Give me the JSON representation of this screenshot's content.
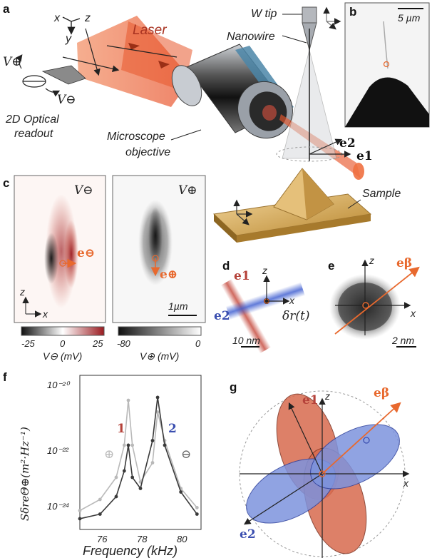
{
  "labels": {
    "panel_a": "a",
    "panel_b": "b",
    "panel_c": "c",
    "panel_d": "d",
    "panel_e": "e",
    "panel_f": "f",
    "panel_g": "g"
  },
  "a": {
    "laser": "Laser",
    "w_tip": "W tip",
    "nanowire": "Nanowire",
    "readout_1": "2D Optical",
    "readout_2": "readout",
    "objective_1": "Microscope",
    "objective_2": "objective",
    "sample": "Sample",
    "axis_x": "x",
    "axis_y": "y",
    "axis_z": "z",
    "v_plus": "V⊕",
    "v_minus": "V⊖",
    "e1": "e1",
    "e2": "e2"
  },
  "b": {
    "scalebar": "5 µm"
  },
  "c": {
    "left_title": "V⊖",
    "right_title": "V⊕",
    "e_minus": "e⊖",
    "e_plus": "e⊕",
    "axis_z": "z",
    "axis_x": "x",
    "scalebar": "1µm",
    "cbar_left_ticks": [
      "-25",
      "0",
      "25"
    ],
    "cbar_right_ticks": [
      "-80",
      "0"
    ],
    "cbar_left_label": "V⊖ (mV)",
    "cbar_right_label": "V⊕ (mV)"
  },
  "d": {
    "e1": "e1",
    "e2": "e2",
    "axis_z": "z",
    "axis_x": "x",
    "dr": "δr(t)",
    "scalebar": "10 nm"
  },
  "e": {
    "e_beta": "eβ",
    "axis_z": "z",
    "axis_x": "x",
    "scalebar": "2 nm"
  },
  "f": {
    "ylabel": "SδreΘ⊕(m²·Hz⁻¹)",
    "xlabel": "Frequency (kHz)",
    "yticks": [
      "10⁻²⁰",
      "10⁻²²",
      "10⁻²⁴"
    ],
    "xticks": [
      "76",
      "78",
      "80"
    ],
    "peak_1": "1",
    "peak_2": "2",
    "sym_plus": "⊕",
    "sym_minus": "⊖"
  },
  "g": {
    "e1": "e1",
    "e2": "e2",
    "e_beta": "eβ",
    "axis_z": "z",
    "axis_x": "x"
  },
  "chart_data": {
    "type": "scatter",
    "xlabel": "Frequency (kHz)",
    "ylabel": "SδreΘ⊕(m²·Hz⁻¹)",
    "xlim": [
      75,
      81
    ],
    "ylim": [
      1e-24,
      1e-20
    ],
    "yscale": "log",
    "series": [
      {
        "name": "⊕",
        "x": [
          75.0,
          76.0,
          76.8,
          77.2,
          77.4,
          77.6,
          78.0,
          78.6,
          78.85,
          79.2,
          80.0,
          80.8
        ],
        "values": [
          2.5e-24,
          5e-24,
          2e-23,
          1.5e-22,
          2.5e-21,
          1.5e-22,
          1.5e-23,
          5e-23,
          1.2e-21,
          2e-22,
          1e-23,
          3e-24
        ]
      },
      {
        "name": "⊖",
        "x": [
          75.0,
          76.0,
          76.8,
          77.2,
          77.4,
          77.6,
          78.0,
          78.6,
          78.85,
          79.2,
          80.0,
          80.8
        ],
        "values": [
          1.5e-24,
          2e-24,
          6e-24,
          3e-23,
          1.5e-22,
          2e-23,
          1e-23,
          2e-22,
          3e-21,
          1.5e-22,
          8e-24,
          2e-24
        ]
      }
    ]
  }
}
